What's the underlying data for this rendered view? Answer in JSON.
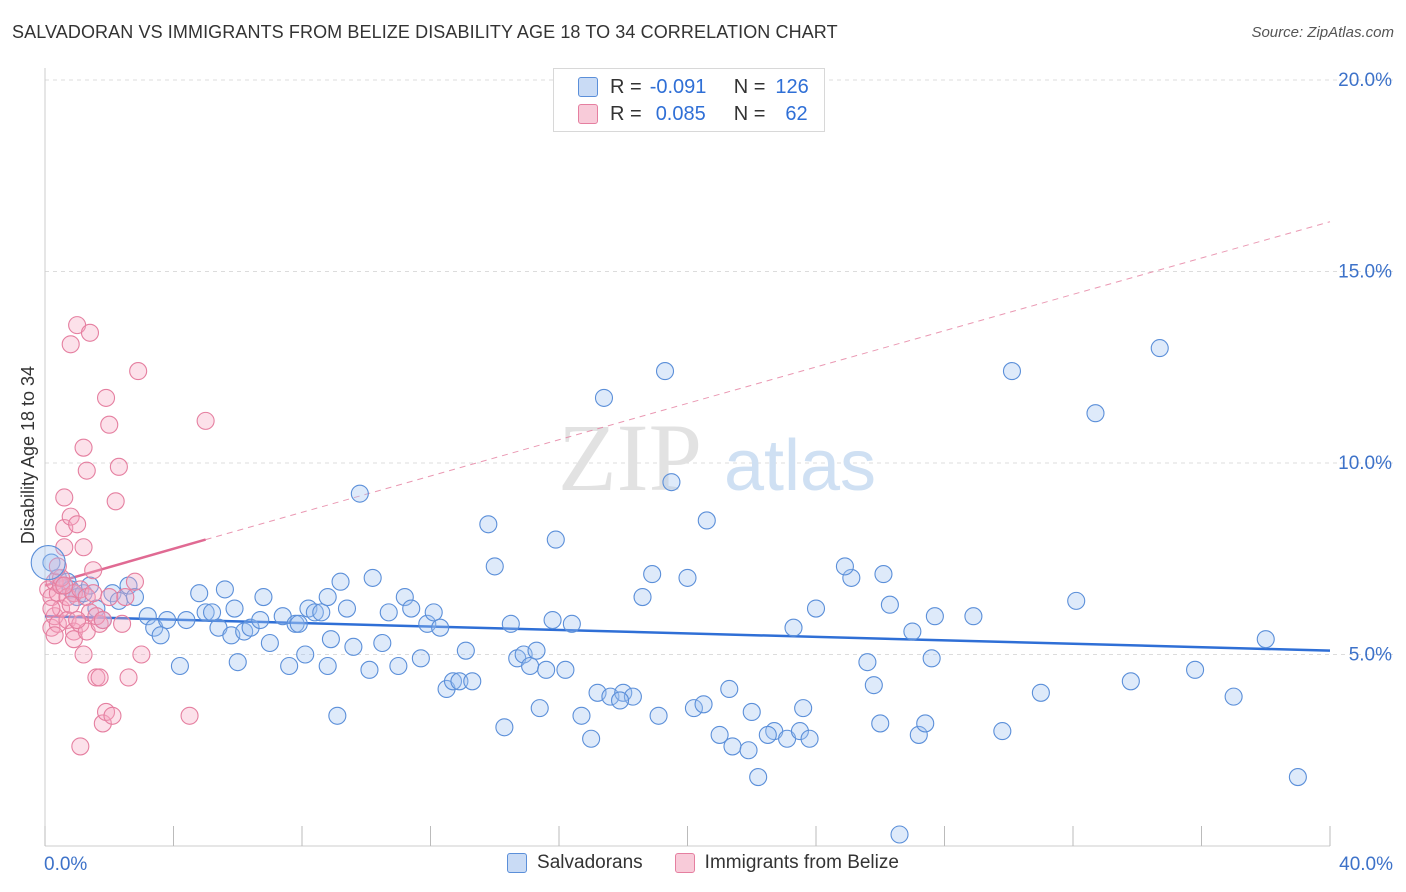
{
  "title": "SALVADORAN VS IMMIGRANTS FROM BELIZE DISABILITY AGE 18 TO 34 CORRELATION CHART",
  "source": "Source: ZipAtlas.com",
  "watermark": {
    "zip": "ZIP",
    "atlas": "atlas"
  },
  "legend": {
    "r_label": "R =",
    "n_label": "N =",
    "series": [
      {
        "name": "Salvadorans",
        "r": "-0.091",
        "n": "126",
        "color": "#5b8fd9",
        "fill": "#c9dbf5"
      },
      {
        "name": "Immigrants from Belize",
        "r": "0.085",
        "n": "62",
        "color": "#e57fa0",
        "fill": "#f8cbd9"
      }
    ]
  },
  "chart_data": {
    "type": "scatter",
    "title": "SALVADORAN VS IMMIGRANTS FROM BELIZE DISABILITY AGE 18 TO 34 CORRELATION CHART",
    "xlabel": "",
    "ylabel": "Disability Age 18 to 34",
    "xlim": [
      0,
      40
    ],
    "ylim": [
      0,
      20
    ],
    "x_tick_labels": [
      "0.0%",
      "40.0%"
    ],
    "y_ticks": [
      5,
      10,
      15,
      20
    ],
    "y_tick_labels": [
      "5.0%",
      "10.0%",
      "15.0%",
      "20.0%"
    ],
    "series": [
      {
        "name": "Salvadorans",
        "color": "#5b8fd9",
        "trend": {
          "x0": 0,
          "y0": 6.0,
          "x1": 40,
          "y1": 5.1,
          "style": "solid"
        },
        "points": [
          [
            0.2,
            7.4
          ],
          [
            0.4,
            7.0
          ],
          [
            0.5,
            6.8
          ],
          [
            0.7,
            6.9
          ],
          [
            0.8,
            6.7
          ],
          [
            0.9,
            6.6
          ],
          [
            1.0,
            6.5
          ],
          [
            1.2,
            6.6
          ],
          [
            1.4,
            6.8
          ],
          [
            1.6,
            6.2
          ],
          [
            1.8,
            5.9
          ],
          [
            2.1,
            6.6
          ],
          [
            2.3,
            6.4
          ],
          [
            2.6,
            6.8
          ],
          [
            2.8,
            6.5
          ],
          [
            3.2,
            6.0
          ],
          [
            3.4,
            5.7
          ],
          [
            3.6,
            5.5
          ],
          [
            3.8,
            5.9
          ],
          [
            4.2,
            4.7
          ],
          [
            4.4,
            5.9
          ],
          [
            4.8,
            6.6
          ],
          [
            5.0,
            6.1
          ],
          [
            5.2,
            6.1
          ],
          [
            5.4,
            5.7
          ],
          [
            5.6,
            6.7
          ],
          [
            5.8,
            5.5
          ],
          [
            5.9,
            6.2
          ],
          [
            6.2,
            5.6
          ],
          [
            6.4,
            5.7
          ],
          [
            6.7,
            5.9
          ],
          [
            6.8,
            6.5
          ],
          [
            7.0,
            5.3
          ],
          [
            7.4,
            6.0
          ],
          [
            7.6,
            4.7
          ],
          [
            7.8,
            5.8
          ],
          [
            7.9,
            5.8
          ],
          [
            8.1,
            5.0
          ],
          [
            8.2,
            6.2
          ],
          [
            8.4,
            6.1
          ],
          [
            8.6,
            6.1
          ],
          [
            8.8,
            4.7
          ],
          [
            8.9,
            5.4
          ],
          [
            9.1,
            3.4
          ],
          [
            9.4,
            6.2
          ],
          [
            9.6,
            5.2
          ],
          [
            9.8,
            9.2
          ],
          [
            10.1,
            4.6
          ],
          [
            10.2,
            7.0
          ],
          [
            10.5,
            5.3
          ],
          [
            10.7,
            6.1
          ],
          [
            11.0,
            4.7
          ],
          [
            11.2,
            6.5
          ],
          [
            11.4,
            6.2
          ],
          [
            11.7,
            4.9
          ],
          [
            11.9,
            5.8
          ],
          [
            12.1,
            6.1
          ],
          [
            12.3,
            5.7
          ],
          [
            12.5,
            4.1
          ],
          [
            12.7,
            4.3
          ],
          [
            12.9,
            4.3
          ],
          [
            13.1,
            5.1
          ],
          [
            13.3,
            4.3
          ],
          [
            13.8,
            8.4
          ],
          [
            14.0,
            7.3
          ],
          [
            14.3,
            3.1
          ],
          [
            14.5,
            5.8
          ],
          [
            14.7,
            4.9
          ],
          [
            14.9,
            5.0
          ],
          [
            15.1,
            4.7
          ],
          [
            15.3,
            5.1
          ],
          [
            15.6,
            4.6
          ],
          [
            15.8,
            5.9
          ],
          [
            15.9,
            8.0
          ],
          [
            16.2,
            4.6
          ],
          [
            16.4,
            5.8
          ],
          [
            16.7,
            3.4
          ],
          [
            17.0,
            2.8
          ],
          [
            17.2,
            4.0
          ],
          [
            17.4,
            11.7
          ],
          [
            17.6,
            3.9
          ],
          [
            18.0,
            4.0
          ],
          [
            18.3,
            3.9
          ],
          [
            18.6,
            6.5
          ],
          [
            18.9,
            7.1
          ],
          [
            19.1,
            3.4
          ],
          [
            19.3,
            12.4
          ],
          [
            19.5,
            9.5
          ],
          [
            20.0,
            7.0
          ],
          [
            20.2,
            3.6
          ],
          [
            20.5,
            3.7
          ],
          [
            20.6,
            8.5
          ],
          [
            21.0,
            2.9
          ],
          [
            21.3,
            4.1
          ],
          [
            21.4,
            2.6
          ],
          [
            21.9,
            2.5
          ],
          [
            22.0,
            3.5
          ],
          [
            22.2,
            1.8
          ],
          [
            22.7,
            3.0
          ],
          [
            23.1,
            2.8
          ],
          [
            23.3,
            5.7
          ],
          [
            23.5,
            3.0
          ],
          [
            23.6,
            3.6
          ],
          [
            23.8,
            2.8
          ],
          [
            24.0,
            6.2
          ],
          [
            25.1,
            7.0
          ],
          [
            25.6,
            4.8
          ],
          [
            25.8,
            4.2
          ],
          [
            26.1,
            7.1
          ],
          [
            26.3,
            6.3
          ],
          [
            26.6,
            0.3
          ],
          [
            27.0,
            5.6
          ],
          [
            27.2,
            2.9
          ],
          [
            27.4,
            3.2
          ],
          [
            27.7,
            6.0
          ],
          [
            28.9,
            6.0
          ],
          [
            29.8,
            3.0
          ],
          [
            30.1,
            12.4
          ],
          [
            31.0,
            4.0
          ],
          [
            32.1,
            6.4
          ],
          [
            32.7,
            11.3
          ],
          [
            33.8,
            4.3
          ],
          [
            34.7,
            13.0
          ],
          [
            35.8,
            4.6
          ],
          [
            37.0,
            3.9
          ],
          [
            38.0,
            5.4
          ],
          [
            39.0,
            1.8
          ],
          [
            24.9,
            7.3
          ],
          [
            26.0,
            3.2
          ],
          [
            27.6,
            4.9
          ],
          [
            8.8,
            6.5
          ],
          [
            6.0,
            4.8
          ],
          [
            9.2,
            6.9
          ],
          [
            17.9,
            3.8
          ],
          [
            15.4,
            3.6
          ],
          [
            22.5,
            2.9
          ]
        ]
      },
      {
        "name": "Immigrants from Belize",
        "color": "#e57fa0",
        "trend": {
          "x0": 0,
          "y0": 6.8,
          "x1": 5,
          "y1": 8.0,
          "style": "solid",
          "ext_x1": 40,
          "ext_y1": 16.3
        },
        "points": [
          [
            0.1,
            6.7
          ],
          [
            0.2,
            6.5
          ],
          [
            0.2,
            5.7
          ],
          [
            0.3,
            6.9
          ],
          [
            0.3,
            6.0
          ],
          [
            0.4,
            6.6
          ],
          [
            0.4,
            5.8
          ],
          [
            0.5,
            6.8
          ],
          [
            0.5,
            6.2
          ],
          [
            0.6,
            7.8
          ],
          [
            0.6,
            9.1
          ],
          [
            0.6,
            8.3
          ],
          [
            0.7,
            6.5
          ],
          [
            0.7,
            5.9
          ],
          [
            0.8,
            13.1
          ],
          [
            0.8,
            8.6
          ],
          [
            0.9,
            6.6
          ],
          [
            0.9,
            5.6
          ],
          [
            0.9,
            5.4
          ],
          [
            1.0,
            8.4
          ],
          [
            1.0,
            13.6
          ],
          [
            1.1,
            6.7
          ],
          [
            1.1,
            5.8
          ],
          [
            1.2,
            7.8
          ],
          [
            1.2,
            10.4
          ],
          [
            1.2,
            5.0
          ],
          [
            1.3,
            6.5
          ],
          [
            1.3,
            5.6
          ],
          [
            1.4,
            13.4
          ],
          [
            1.4,
            6.1
          ],
          [
            1.5,
            7.2
          ],
          [
            1.5,
            6.6
          ],
          [
            1.6,
            4.4
          ],
          [
            1.7,
            4.4
          ],
          [
            1.7,
            5.8
          ],
          [
            1.8,
            3.2
          ],
          [
            1.9,
            3.5
          ],
          [
            1.9,
            11.7
          ],
          [
            2.0,
            11.0
          ],
          [
            2.0,
            6.5
          ],
          [
            2.1,
            3.4
          ],
          [
            2.2,
            9.0
          ],
          [
            2.3,
            9.9
          ],
          [
            2.5,
            6.5
          ],
          [
            2.6,
            4.4
          ],
          [
            2.8,
            6.9
          ],
          [
            2.9,
            12.4
          ],
          [
            3.0,
            5.0
          ],
          [
            4.5,
            3.4
          ],
          [
            5.0,
            11.1
          ],
          [
            1.1,
            2.6
          ],
          [
            0.5,
            7.0
          ],
          [
            0.3,
            5.5
          ],
          [
            0.8,
            6.3
          ],
          [
            1.6,
            6.0
          ],
          [
            2.4,
            5.8
          ],
          [
            1.0,
            5.9
          ],
          [
            0.6,
            6.8
          ],
          [
            0.4,
            7.3
          ],
          [
            1.3,
            9.8
          ],
          [
            1.8,
            5.9
          ],
          [
            0.2,
            6.2
          ]
        ]
      }
    ]
  }
}
